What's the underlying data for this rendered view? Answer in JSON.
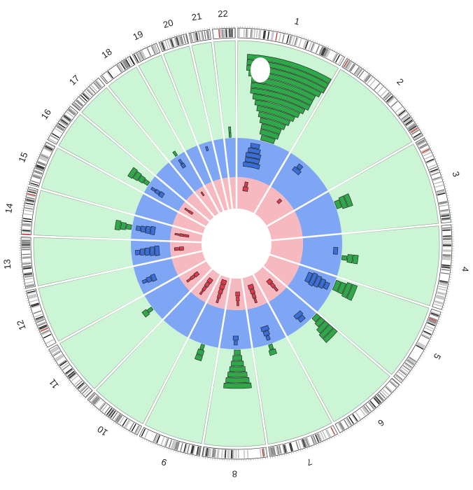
{
  "chart_data": {
    "type": "circos",
    "chromosomes": [
      "1",
      "2",
      "3",
      "4",
      "5",
      "6",
      "7",
      "8",
      "9",
      "10",
      "11",
      "12",
      "13",
      "14",
      "15",
      "16",
      "17",
      "18",
      "19",
      "20",
      "21",
      "22"
    ],
    "chromosome_sizes": [
      249,
      243,
      198,
      191,
      181,
      171,
      159,
      146,
      141,
      136,
      135,
      134,
      115,
      107,
      102,
      90,
      83,
      80,
      59,
      64,
      47,
      51
    ],
    "rings": [
      {
        "name": "outer-green",
        "color": "#2fa84a",
        "background": "#ccf5d6"
      },
      {
        "name": "middle-blue",
        "color": "#3a6fd8",
        "background": "#7fa6f5"
      },
      {
        "name": "inner-red",
        "color": "#e23a4c",
        "background": "#f7b9c0"
      }
    ],
    "stacks": {
      "green": [
        {
          "chr": 0,
          "f": 0.55,
          "heights": [
            3,
            4,
            4,
            5,
            6,
            7,
            8,
            9,
            10,
            10,
            10,
            11,
            12,
            12,
            12
          ]
        },
        {
          "chr": 2,
          "f": 0.35,
          "heights": [
            2,
            3,
            3
          ]
        },
        {
          "chr": 3,
          "f": 0.55,
          "heights": [
            1,
            2,
            2
          ]
        },
        {
          "chr": 4,
          "f": 0.2,
          "heights": [
            3,
            3,
            4,
            4
          ]
        },
        {
          "chr": 5,
          "f": 0.1,
          "heights": [
            2,
            3,
            5,
            6,
            6
          ]
        },
        {
          "chr": 6,
          "f": 0.5,
          "heights": [
            1,
            2
          ]
        },
        {
          "chr": 7,
          "f": 0.45,
          "heights": [
            2,
            3,
            4,
            5,
            6,
            7,
            8
          ]
        },
        {
          "chr": 8,
          "f": 0.5,
          "heights": [
            1,
            2,
            2
          ]
        },
        {
          "chr": 10,
          "f": 0.5,
          "heights": [
            1,
            2
          ]
        },
        {
          "chr": 13,
          "f": 0.5,
          "heights": [
            2,
            3,
            4
          ]
        },
        {
          "chr": 15,
          "f": 0.5,
          "heights": [
            2,
            3,
            4,
            5
          ]
        },
        {
          "chr": 17,
          "f": 0.5,
          "heights": [
            1
          ]
        },
        {
          "chr": 21,
          "f": 0.5,
          "heights": [
            1,
            1
          ]
        }
      ],
      "blue": [
        {
          "chr": 0,
          "f": 0.35,
          "heights": [
            2,
            3,
            4,
            4,
            5
          ]
        },
        {
          "chr": 1,
          "f": 0.3,
          "heights": [
            1,
            2
          ]
        },
        {
          "chr": 3,
          "f": 0.4,
          "heights": [
            2
          ]
        },
        {
          "chr": 4,
          "f": 0.3,
          "heights": [
            2,
            3,
            4,
            5,
            4
          ]
        },
        {
          "chr": 5,
          "f": 0.4,
          "heights": [
            2,
            3
          ]
        },
        {
          "chr": 6,
          "f": 0.5,
          "heights": [
            1,
            2,
            3
          ]
        },
        {
          "chr": 7,
          "f": 0.5,
          "heights": [
            1,
            2
          ]
        },
        {
          "chr": 11,
          "f": 0.4,
          "heights": [
            1,
            2,
            3
          ]
        },
        {
          "chr": 12,
          "f": 0.5,
          "heights": [
            2,
            3,
            4,
            5,
            6
          ]
        },
        {
          "chr": 13,
          "f": 0.5,
          "heights": [
            2,
            3,
            4,
            5
          ]
        },
        {
          "chr": 15,
          "f": 0.4,
          "heights": [
            1,
            2,
            3
          ]
        },
        {
          "chr": 17,
          "f": 0.5,
          "heights": [
            1,
            2
          ]
        },
        {
          "chr": 19,
          "f": 0.5,
          "heights": [
            1
          ]
        }
      ],
      "red": [
        {
          "chr": 0,
          "f": 0.3,
          "heights": [
            1,
            2
          ]
        },
        {
          "chr": 1,
          "f": 0.5,
          "heights": [
            1
          ]
        },
        {
          "chr": 5,
          "f": 0.4,
          "heights": [
            1,
            2,
            3
          ]
        },
        {
          "chr": 6,
          "f": 0.5,
          "heights": [
            1,
            2,
            3,
            4
          ]
        },
        {
          "chr": 7,
          "f": 0.4,
          "heights": [
            1,
            2,
            3
          ]
        },
        {
          "chr": 8,
          "f": 0.5,
          "heights": [
            1,
            2,
            3,
            4,
            5
          ]
        },
        {
          "chr": 9,
          "f": 0.5,
          "heights": [
            1,
            2,
            3,
            4
          ]
        },
        {
          "chr": 10,
          "f": 0.5,
          "heights": [
            1,
            2,
            3
          ]
        },
        {
          "chr": 12,
          "f": 0.5,
          "heights": [
            2,
            3
          ]
        },
        {
          "chr": 13,
          "f": 0.5,
          "heights": [
            1,
            2,
            2
          ]
        },
        {
          "chr": 15,
          "f": 0.5,
          "heights": [
            1,
            2
          ]
        },
        {
          "chr": 17,
          "f": 0.5,
          "heights": [
            1
          ]
        }
      ]
    }
  }
}
